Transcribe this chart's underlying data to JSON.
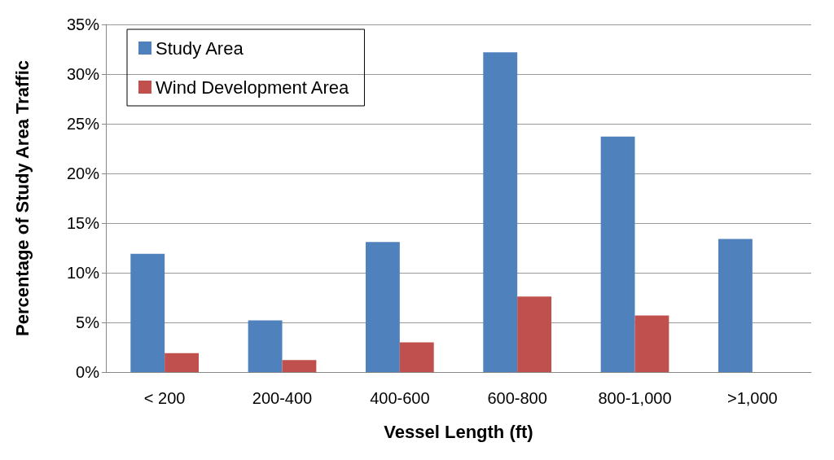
{
  "chart_data": {
    "type": "bar",
    "xlabel": "Vessel Length (ft)",
    "ylabel": "Percentage of Study Area Traffic",
    "categories": [
      "< 200",
      "200-400",
      "400-600",
      "600-800",
      "800-1,000",
      ">1,000"
    ],
    "series": [
      {
        "name": "Study Area",
        "color": "#4f81bd",
        "values": [
          11.9,
          5.2,
          13.1,
          32.2,
          23.7,
          13.4
        ]
      },
      {
        "name": "Wind Development Area",
        "color": "#c0504d",
        "values": [
          1.9,
          1.2,
          3.0,
          7.6,
          5.7,
          0
        ]
      }
    ],
    "ylim": [
      0,
      35
    ],
    "yticks": [
      {
        "value": 0,
        "label": "0%"
      },
      {
        "value": 5,
        "label": "5%"
      },
      {
        "value": 10,
        "label": "10%"
      },
      {
        "value": 15,
        "label": "15%"
      },
      {
        "value": 20,
        "label": "20%"
      },
      {
        "value": 25,
        "label": "25%"
      },
      {
        "value": 30,
        "label": "30%"
      },
      {
        "value": 35,
        "label": "35%"
      }
    ],
    "grid": "y",
    "legend": "top left"
  }
}
